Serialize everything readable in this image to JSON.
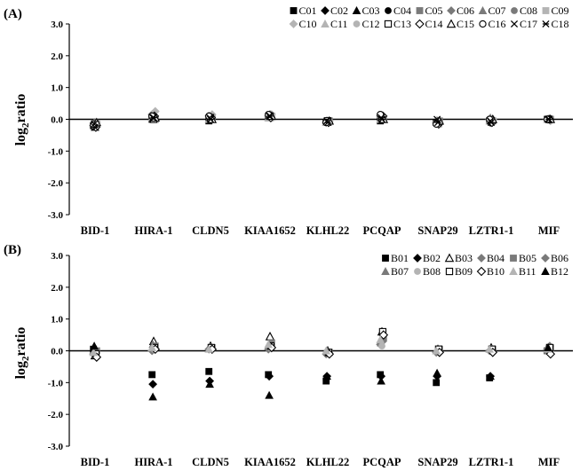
{
  "colors": {
    "C01": "#000000",
    "C02": "#000000",
    "C03": "#000000",
    "C04": "#000000",
    "C05": "#7a7a7a",
    "C06": "#7a7a7a",
    "C07": "#7a7a7a",
    "C08": "#7a7a7a",
    "C09": "#b4b4b4",
    "C10": "#b4b4b4",
    "C11": "#b4b4b4",
    "C12": "#b4b4b4",
    "C13": "#000000",
    "C14": "#000000",
    "C15": "#000000",
    "C16": "#000000",
    "C17": "#000000",
    "C18": "#000000",
    "B01": "#000000",
    "B02": "#000000",
    "B03": "#000000",
    "B04": "#7a7a7a",
    "B05": "#7a7a7a",
    "B06": "#7a7a7a",
    "B07": "#7a7a7a",
    "B08": "#b4b4b4",
    "B09": "#000000",
    "B10": "#000000",
    "B11": "#b4b4b4",
    "B12": "#000000"
  },
  "chart_data": [
    {
      "type": "scatter",
      "panel_label": "(A)",
      "ylabel_main": "log",
      "ylabel_sub": "2",
      "ylabel_tail": "ratio",
      "ylim": [
        -3.0,
        3.0
      ],
      "yticks": [
        "3.0",
        "2.0",
        "1.0",
        "0.0",
        "-1.0",
        "-2.0",
        "-3.0"
      ],
      "categories": [
        "BID-1",
        "HIRA-1",
        "CLDN5",
        "KIAA1652",
        "KLHL22",
        "PCQAP",
        "SNAP29",
        "LZTR1-1",
        "MIF"
      ],
      "legend_position": "top-right",
      "legend_rows": [
        [
          "C01",
          "C02",
          "C03",
          "C04",
          "C05",
          "C06",
          "C07",
          "C08",
          "C09"
        ],
        [
          "C10",
          "C11",
          "C12",
          "C13",
          "C14",
          "C15",
          "C16",
          "C17",
          "C18"
        ]
      ],
      "series": [
        {
          "name": "C01",
          "marker": "square",
          "values": [
            -0.2,
            0.0,
            -0.05,
            0.05,
            -0.1,
            -0.05,
            -0.1,
            -0.05,
            0.0
          ]
        },
        {
          "name": "C02",
          "marker": "diamond",
          "values": [
            -0.15,
            0.05,
            0.05,
            0.1,
            -0.05,
            0.0,
            -0.05,
            -0.1,
            0.0
          ]
        },
        {
          "name": "C03",
          "marker": "triangle",
          "values": [
            -0.25,
            0.1,
            0.0,
            0.15,
            -0.1,
            0.05,
            -0.1,
            -0.05,
            0.0
          ]
        },
        {
          "name": "C04",
          "marker": "circle",
          "values": [
            -0.1,
            0.05,
            0.1,
            0.05,
            -0.05,
            0.05,
            -0.05,
            0.0,
            0.0
          ]
        },
        {
          "name": "C05",
          "marker": "square",
          "values": [
            -0.15,
            0.0,
            0.05,
            0.1,
            -0.05,
            0.0,
            -0.05,
            -0.05,
            0.0
          ]
        },
        {
          "name": "C06",
          "marker": "diamond",
          "values": [
            -0.2,
            0.15,
            0.1,
            0.1,
            -0.1,
            0.1,
            -0.1,
            0.0,
            0.0
          ]
        },
        {
          "name": "C07",
          "marker": "triangle",
          "values": [
            -0.1,
            0.05,
            0.0,
            0.05,
            -0.05,
            0.0,
            -0.05,
            0.05,
            0.0
          ]
        },
        {
          "name": "C08",
          "marker": "circle",
          "values": [
            -0.15,
            0.1,
            0.05,
            0.1,
            -0.05,
            0.05,
            -0.1,
            0.0,
            0.0
          ]
        },
        {
          "name": "C09",
          "marker": "square",
          "values": [
            -0.2,
            0.0,
            0.1,
            0.05,
            -0.1,
            0.0,
            -0.15,
            -0.05,
            0.0
          ]
        },
        {
          "name": "C10",
          "marker": "diamond",
          "values": [
            -0.1,
            0.25,
            0.15,
            0.15,
            -0.05,
            0.1,
            -0.1,
            0.0,
            -0.05
          ]
        },
        {
          "name": "C11",
          "marker": "triangle",
          "values": [
            -0.15,
            0.05,
            0.0,
            0.05,
            -0.1,
            0.0,
            -0.05,
            -0.05,
            0.0
          ]
        },
        {
          "name": "C12",
          "marker": "circle",
          "values": [
            -0.2,
            0.1,
            0.1,
            0.1,
            -0.05,
            0.05,
            -0.1,
            0.0,
            0.0
          ]
        },
        {
          "name": "C13",
          "marker": "open-square",
          "values": [
            -0.15,
            0.0,
            0.05,
            0.1,
            -0.05,
            0.05,
            -0.1,
            -0.05,
            0.0
          ]
        },
        {
          "name": "C14",
          "marker": "open-diamond",
          "values": [
            -0.25,
            0.1,
            0.05,
            0.05,
            -0.1,
            0.1,
            -0.15,
            -0.1,
            0.0
          ]
        },
        {
          "name": "C15",
          "marker": "open-triangle",
          "values": [
            -0.1,
            0.05,
            0.0,
            0.1,
            -0.05,
            0.0,
            -0.05,
            0.0,
            0.0
          ]
        },
        {
          "name": "C16",
          "marker": "open-circle",
          "values": [
            -0.2,
            0.1,
            0.1,
            0.15,
            -0.1,
            0.15,
            -0.15,
            0.0,
            0.0
          ]
        },
        {
          "name": "C17",
          "marker": "x",
          "values": [
            -0.15,
            0.05,
            0.05,
            0.1,
            -0.05,
            0.05,
            0.0,
            -0.05,
            0.0
          ]
        },
        {
          "name": "C18",
          "marker": "star",
          "values": [
            -0.25,
            0.05,
            0.0,
            0.1,
            -0.1,
            0.0,
            -0.1,
            -0.1,
            0.0
          ]
        }
      ]
    },
    {
      "type": "scatter",
      "panel_label": "(B)",
      "ylabel_main": "log",
      "ylabel_sub": "2",
      "ylabel_tail": "ratio",
      "ylim": [
        -3.0,
        3.0
      ],
      "yticks": [
        "3.0",
        "2.0",
        "1.0",
        "0.0",
        "-1.0",
        "-2.0",
        "-3.0"
      ],
      "categories": [
        "BID-1",
        "HIRA-1",
        "CLDN5",
        "KIAA1652",
        "KLHL22",
        "PCQAP",
        "SNAP29",
        "LZTR1-1",
        "MIF"
      ],
      "legend_position": "top-right",
      "legend_rows": [
        [
          "B01",
          "B02",
          "B03",
          "B04",
          "B05",
          "B06"
        ],
        [
          "B07",
          "B08",
          "B09",
          "B10",
          "B11",
          "B12"
        ]
      ],
      "series": [
        {
          "name": "B01",
          "marker": "square",
          "values": [
            0.05,
            -0.75,
            -0.65,
            -0.75,
            -0.95,
            -0.75,
            -1.0,
            -0.85,
            0.0
          ]
        },
        {
          "name": "B02",
          "marker": "diamond",
          "values": [
            0.0,
            -1.05,
            -0.95,
            -0.8,
            -0.8,
            -0.8,
            -0.8,
            -0.8,
            0.05
          ]
        },
        {
          "name": "B03",
          "marker": "open-triangle",
          "values": [
            -0.15,
            0.3,
            0.15,
            0.45,
            0.0,
            0.6,
            0.05,
            0.1,
            0.1
          ]
        },
        {
          "name": "B04",
          "marker": "diamond",
          "values": [
            -0.05,
            0.1,
            0.1,
            0.2,
            -0.05,
            0.3,
            0.0,
            0.05,
            0.15
          ]
        },
        {
          "name": "B05",
          "marker": "square",
          "values": [
            0.0,
            0.15,
            0.1,
            0.25,
            -0.05,
            0.4,
            0.05,
            0.05,
            0.1
          ]
        },
        {
          "name": "B06",
          "marker": "diamond",
          "values": [
            -0.1,
            0.0,
            0.05,
            0.05,
            -0.1,
            0.2,
            -0.05,
            0.0,
            0.05
          ]
        },
        {
          "name": "B07",
          "marker": "triangle",
          "values": [
            -0.05,
            0.2,
            0.1,
            0.15,
            0.0,
            0.25,
            0.0,
            0.05,
            0.0
          ]
        },
        {
          "name": "B08",
          "marker": "circle",
          "values": [
            -0.15,
            0.05,
            0.05,
            0.1,
            -0.05,
            0.15,
            0.0,
            0.0,
            0.05
          ]
        },
        {
          "name": "B09",
          "marker": "open-square",
          "values": [
            -0.1,
            0.1,
            0.1,
            0.15,
            -0.05,
            0.6,
            0.05,
            0.05,
            0.1
          ]
        },
        {
          "name": "B10",
          "marker": "open-diamond",
          "values": [
            -0.2,
            0.05,
            0.05,
            0.1,
            -0.1,
            0.5,
            -0.05,
            -0.05,
            -0.1
          ]
        },
        {
          "name": "B11",
          "marker": "triangle",
          "values": [
            -0.05,
            0.1,
            0.05,
            0.2,
            0.0,
            0.35,
            0.0,
            0.05,
            0.05
          ]
        },
        {
          "name": "B12",
          "marker": "triangle",
          "values": [
            0.15,
            -1.45,
            -1.05,
            -1.4,
            -0.8,
            -0.95,
            -0.7,
            -0.8,
            0.1
          ]
        }
      ]
    }
  ]
}
